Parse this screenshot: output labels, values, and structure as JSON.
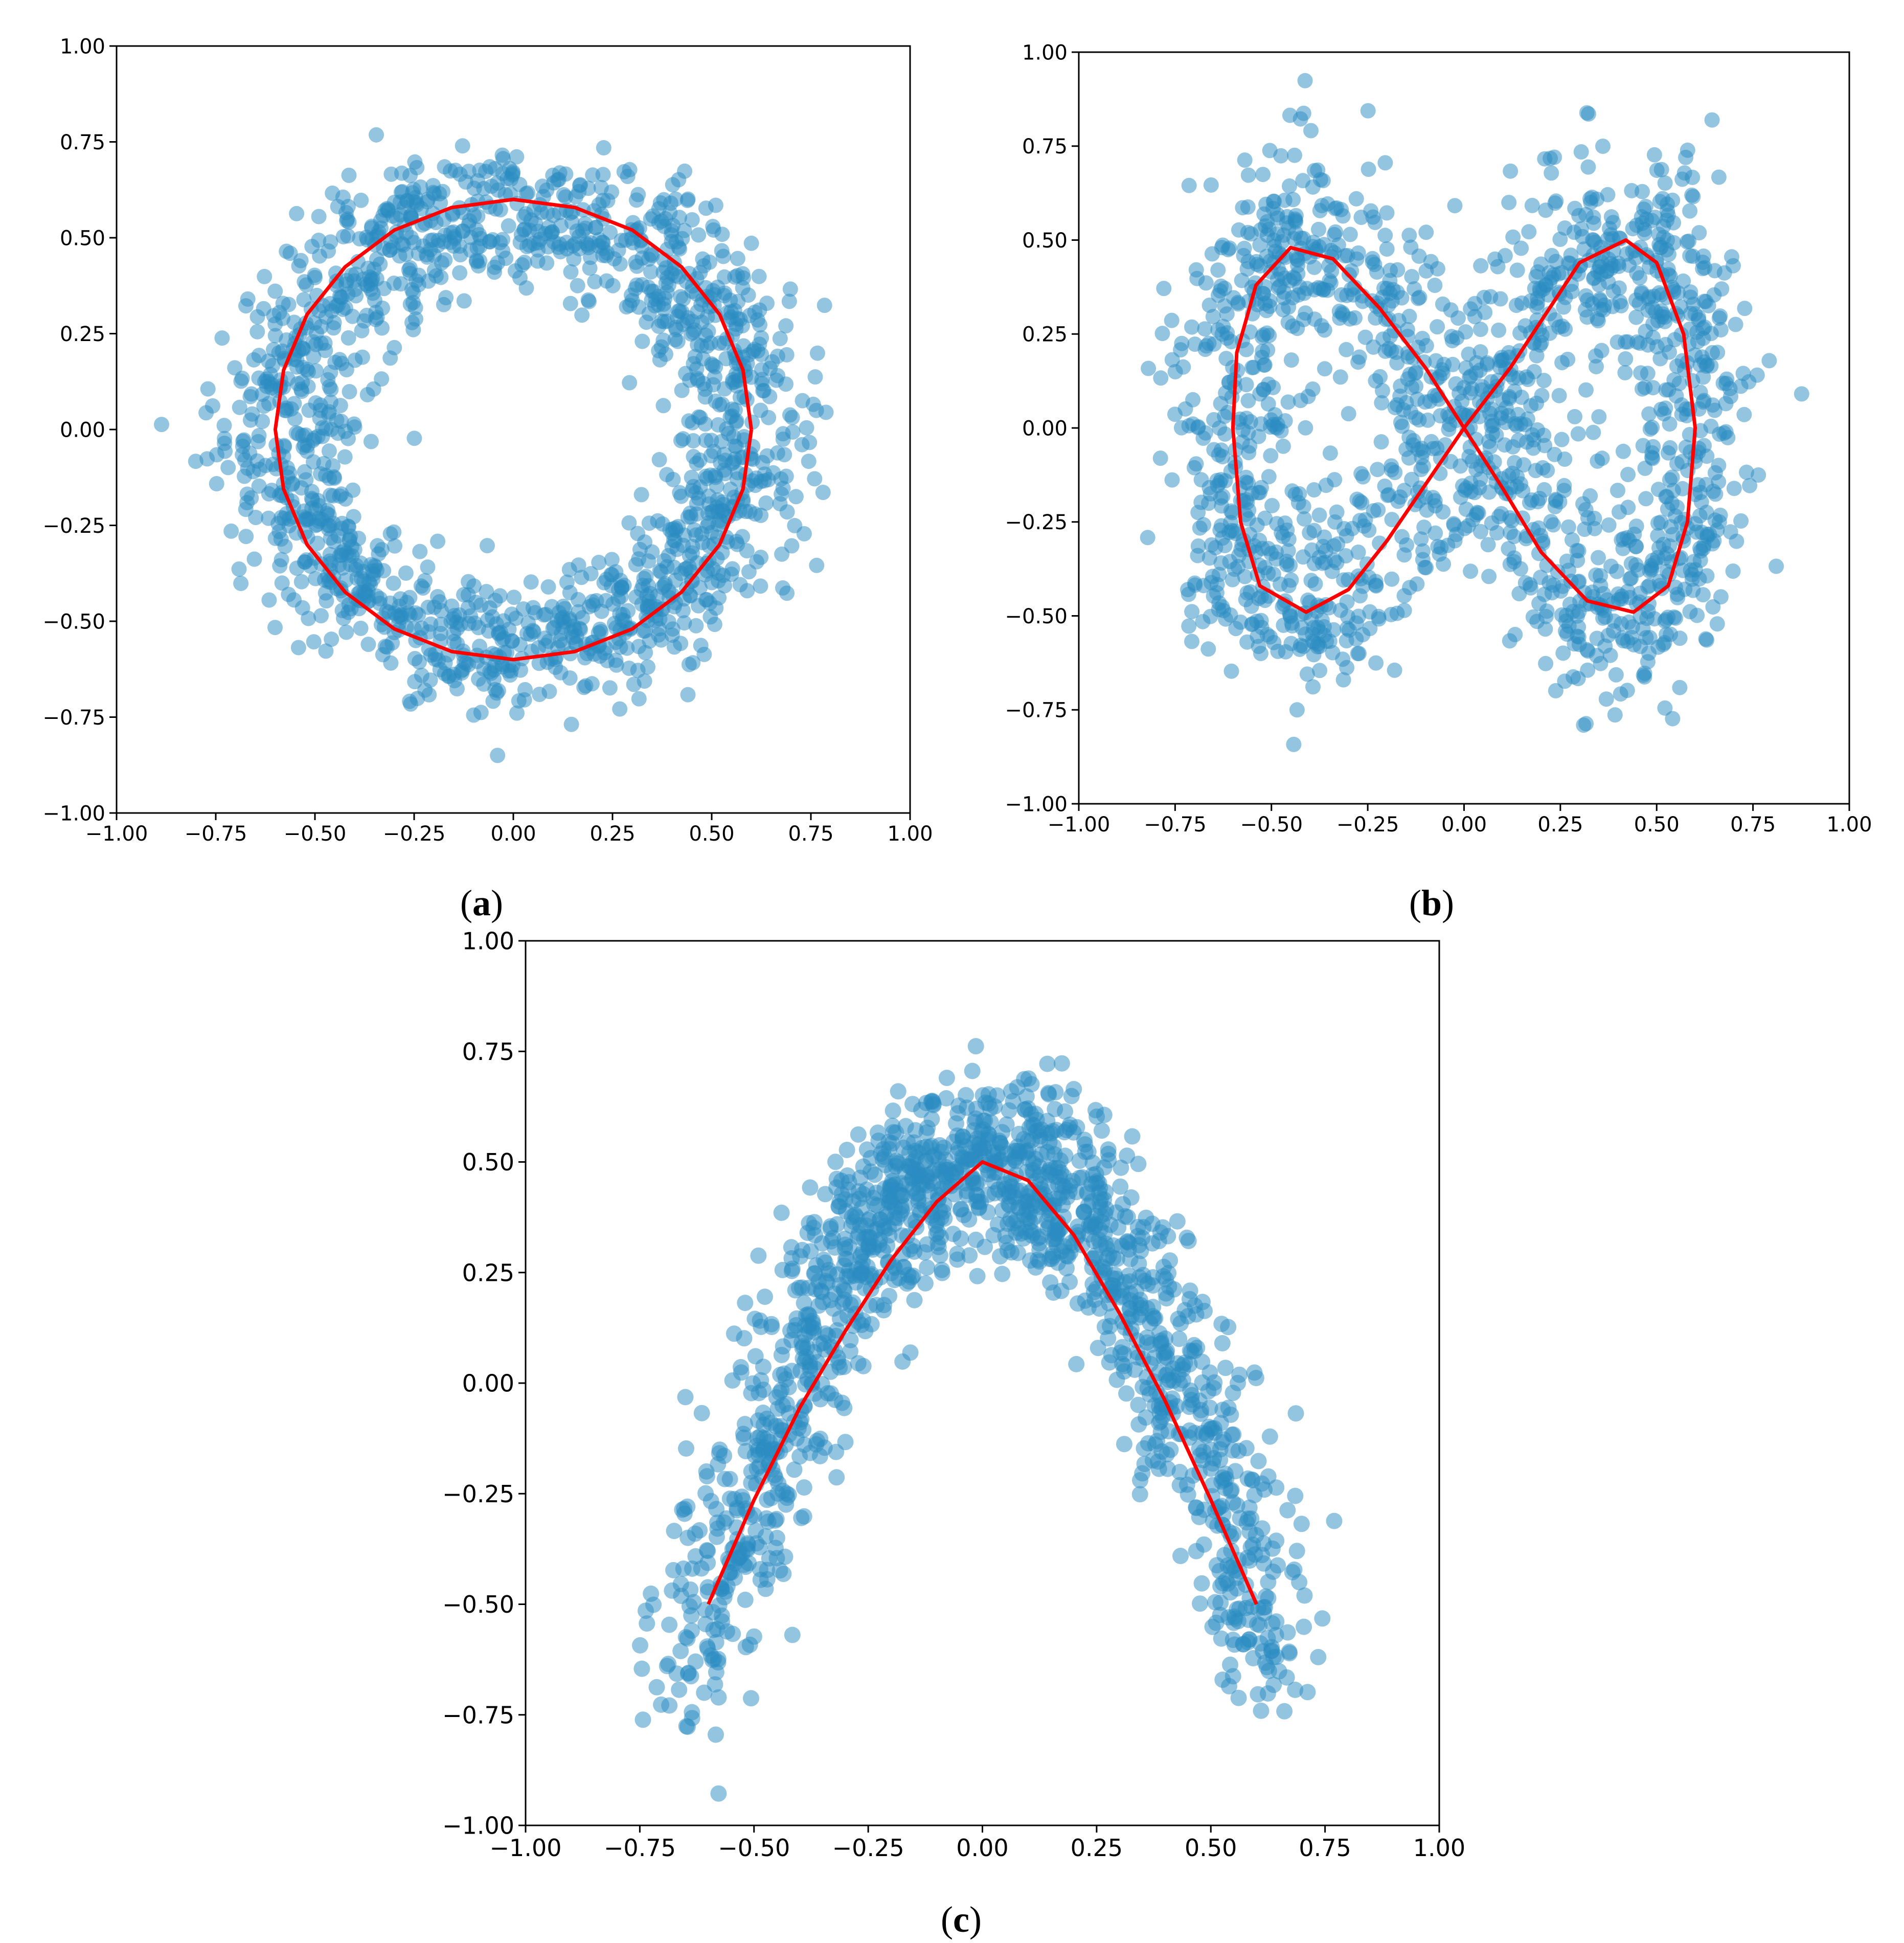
{
  "chart_data": [
    {
      "panel": "a",
      "caption_letter": "a",
      "type": "scatter",
      "xlim": [
        -1.0,
        1.0
      ],
      "ylim": [
        -1.0,
        1.0
      ],
      "xticks": [
        "−1.00",
        "−0.75",
        "−0.50",
        "−0.25",
        "0.00",
        "0.25",
        "0.50",
        "0.75",
        "1.00"
      ],
      "yticks": [
        "−1.00",
        "−0.75",
        "−0.50",
        "−0.25",
        "0.00",
        "0.25",
        "0.50",
        "0.75",
        "1.00"
      ],
      "grid": false,
      "point_color": "#2a8cc2",
      "line_color": "#ff0000",
      "point_count": 1600,
      "seed": 11,
      "noise_shape": {
        "kind": "ring",
        "r_min": 0.25,
        "r_max": 0.75,
        "center": 0.6
      },
      "curve": {
        "kind": "circle",
        "points": [
          [
            0.6,
            0.0
          ],
          [
            0.579,
            0.155
          ],
          [
            0.52,
            0.3
          ],
          [
            0.424,
            0.424
          ],
          [
            0.3,
            0.52
          ],
          [
            0.155,
            0.579
          ],
          [
            0.0,
            0.6
          ],
          [
            -0.155,
            0.579
          ],
          [
            -0.3,
            0.52
          ],
          [
            -0.424,
            0.424
          ],
          [
            -0.52,
            0.3
          ],
          [
            -0.579,
            0.155
          ],
          [
            -0.6,
            0.0
          ],
          [
            -0.579,
            -0.155
          ],
          [
            -0.52,
            -0.3
          ],
          [
            -0.424,
            -0.424
          ],
          [
            -0.3,
            -0.52
          ],
          [
            -0.155,
            -0.579
          ],
          [
            0.0,
            -0.6
          ],
          [
            0.155,
            -0.579
          ],
          [
            0.3,
            -0.52
          ],
          [
            0.424,
            -0.424
          ],
          [
            0.52,
            -0.3
          ],
          [
            0.579,
            -0.155
          ],
          [
            0.6,
            0.0
          ]
        ]
      }
    },
    {
      "panel": "b",
      "caption_letter": "b",
      "type": "scatter",
      "xlim": [
        -1.0,
        1.0
      ],
      "ylim": [
        -1.0,
        1.0
      ],
      "xticks": [
        "−1.00",
        "−0.75",
        "−0.50",
        "−0.25",
        "0.00",
        "0.25",
        "0.50",
        "0.75",
        "1.00"
      ],
      "yticks": [
        "−1.00",
        "−0.75",
        "−0.50",
        "−0.25",
        "0.00",
        "0.25",
        "0.50",
        "0.75",
        "1.00"
      ],
      "grid": false,
      "point_color": "#2a8cc2",
      "line_color": "#ff0000",
      "point_count": 1600,
      "seed": 23,
      "noise_shape": {
        "kind": "figure8"
      },
      "curve": {
        "kind": "lemniscate",
        "points": [
          [
            0.0,
            0.0
          ],
          [
            0.12,
            0.16
          ],
          [
            0.21,
            0.3
          ],
          [
            0.3,
            0.44
          ],
          [
            0.42,
            0.5
          ],
          [
            0.5,
            0.44
          ],
          [
            0.57,
            0.25
          ],
          [
            0.6,
            0.0
          ],
          [
            0.58,
            -0.25
          ],
          [
            0.53,
            -0.42
          ],
          [
            0.44,
            -0.49
          ],
          [
            0.32,
            -0.46
          ],
          [
            0.2,
            -0.33
          ],
          [
            0.1,
            -0.16
          ],
          [
            0.0,
            0.0
          ],
          [
            -0.1,
            0.16
          ],
          [
            -0.22,
            0.32
          ],
          [
            -0.34,
            0.45
          ],
          [
            -0.45,
            0.48
          ],
          [
            -0.54,
            0.38
          ],
          [
            -0.59,
            0.2
          ],
          [
            -0.6,
            0.0
          ],
          [
            -0.58,
            -0.25
          ],
          [
            -0.53,
            -0.42
          ],
          [
            -0.41,
            -0.49
          ],
          [
            -0.3,
            -0.43
          ],
          [
            -0.2,
            -0.3
          ],
          [
            -0.1,
            -0.15
          ],
          [
            0.0,
            0.0
          ]
        ]
      }
    },
    {
      "panel": "c",
      "caption_letter": "c",
      "type": "scatter",
      "xlim": [
        -1.0,
        1.0
      ],
      "ylim": [
        -1.0,
        1.0
      ],
      "xticks": [
        "−1.00",
        "−0.75",
        "−0.50",
        "−0.25",
        "0.00",
        "0.25",
        "0.50",
        "0.75",
        "1.00"
      ],
      "yticks": [
        "−1.00",
        "−0.75",
        "−0.50",
        "−0.25",
        "0.00",
        "0.25",
        "0.50",
        "0.75",
        "1.00"
      ],
      "grid": false,
      "point_color": "#2a8cc2",
      "line_color": "#ff0000",
      "point_count": 1500,
      "seed": 37,
      "noise_shape": {
        "kind": "parabola"
      },
      "curve": {
        "kind": "parabola",
        "points": [
          [
            -0.6,
            -0.5
          ],
          [
            -0.5,
            -0.264
          ],
          [
            -0.4,
            -0.056
          ],
          [
            -0.3,
            0.118
          ],
          [
            -0.2,
            0.278
          ],
          [
            -0.1,
            0.41
          ],
          [
            0.0,
            0.5
          ],
          [
            0.1,
            0.458
          ],
          [
            0.2,
            0.335
          ],
          [
            0.3,
            0.158
          ],
          [
            0.4,
            -0.04
          ],
          [
            0.5,
            -0.264
          ],
          [
            0.6,
            -0.5
          ]
        ]
      }
    }
  ]
}
